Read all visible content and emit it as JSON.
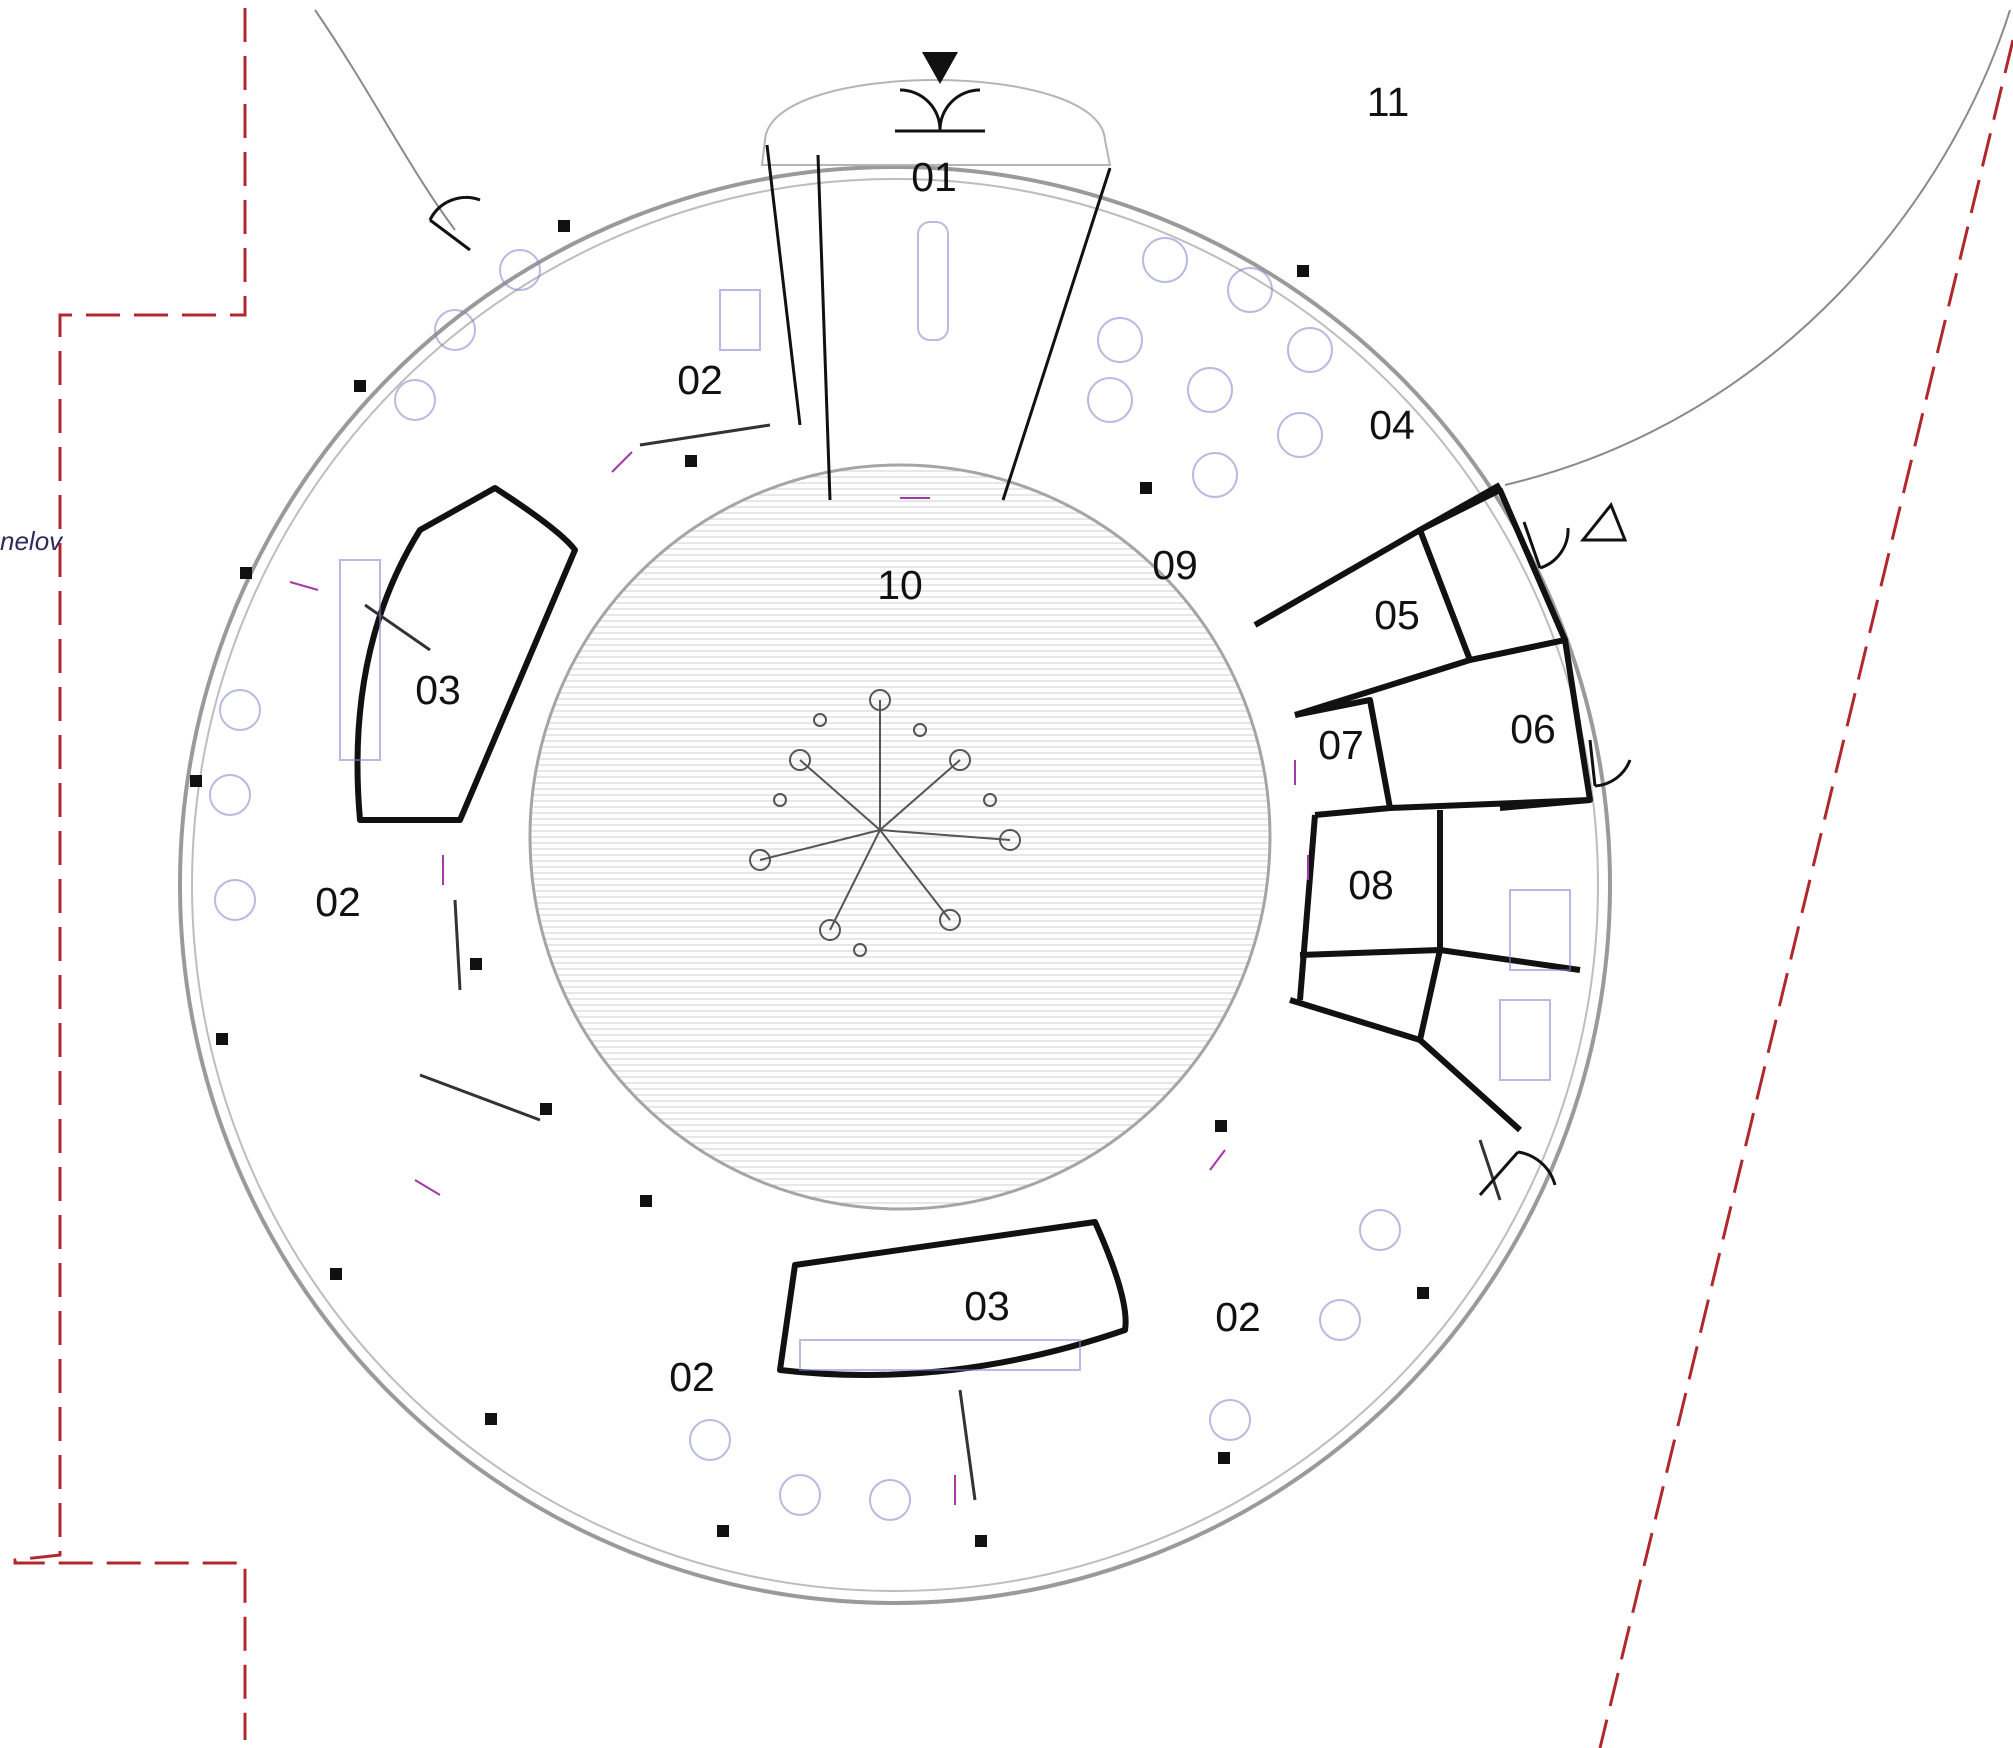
{
  "plot": {
    "note_text": "nelov",
    "boundary_color": "#b0282c",
    "path_color": "#8a8a8a"
  },
  "colors": {
    "wall": "#111111",
    "thin_line": "#9a9a9a",
    "furniture": "#7d83c9",
    "arrow": "#a23aa8",
    "courtyard_hatch": "#c9c9c9",
    "tree": "#555555"
  },
  "rooms": {
    "r01": "01",
    "r02_north": "02",
    "r02_west": "02",
    "r02_south": "02",
    "r02_southeast": "02",
    "r03_west": "03",
    "r03_south": "03",
    "r04": "04",
    "r05": "05",
    "r06": "06",
    "r07": "07",
    "r08": "08",
    "r09": "09",
    "r10": "10",
    "r11": "11"
  },
  "symbols": {
    "main_entrance": "filled-triangle-icon",
    "secondary_entrance": "outline-triangle-icon",
    "sliding_arrow": "double-arrow-icon",
    "column": "column-marker",
    "tree": "tree-icon"
  }
}
